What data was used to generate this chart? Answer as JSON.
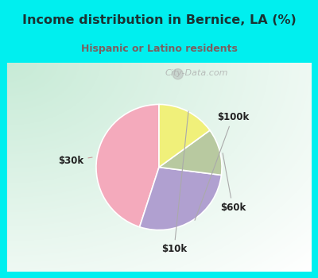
{
  "title": "Income distribution in Bernice, LA (%)",
  "subtitle": "Hispanic or Latino residents",
  "title_color": "#1a3333",
  "subtitle_color": "#7a6060",
  "title_bg_color": "#00EFEF",
  "border_color": "#00EFEF",
  "border_width": 8,
  "slices": [
    {
      "label": "$30k",
      "value": 45,
      "color": "#f4aabc"
    },
    {
      "label": "$100k",
      "value": 28,
      "color": "#b0a0d0"
    },
    {
      "label": "$60k",
      "value": 12,
      "color": "#b8c9a0"
    },
    {
      "label": "$10k",
      "value": 15,
      "color": "#f0f07a"
    }
  ],
  "label_color": "#222222",
  "label_fontsize": 8.5,
  "startangle": 90,
  "watermark": "City-Data.com",
  "watermark_color": "#aaaaaa",
  "bg_color_left": "#c8e8d8",
  "bg_color_right": "#e8f4f0"
}
